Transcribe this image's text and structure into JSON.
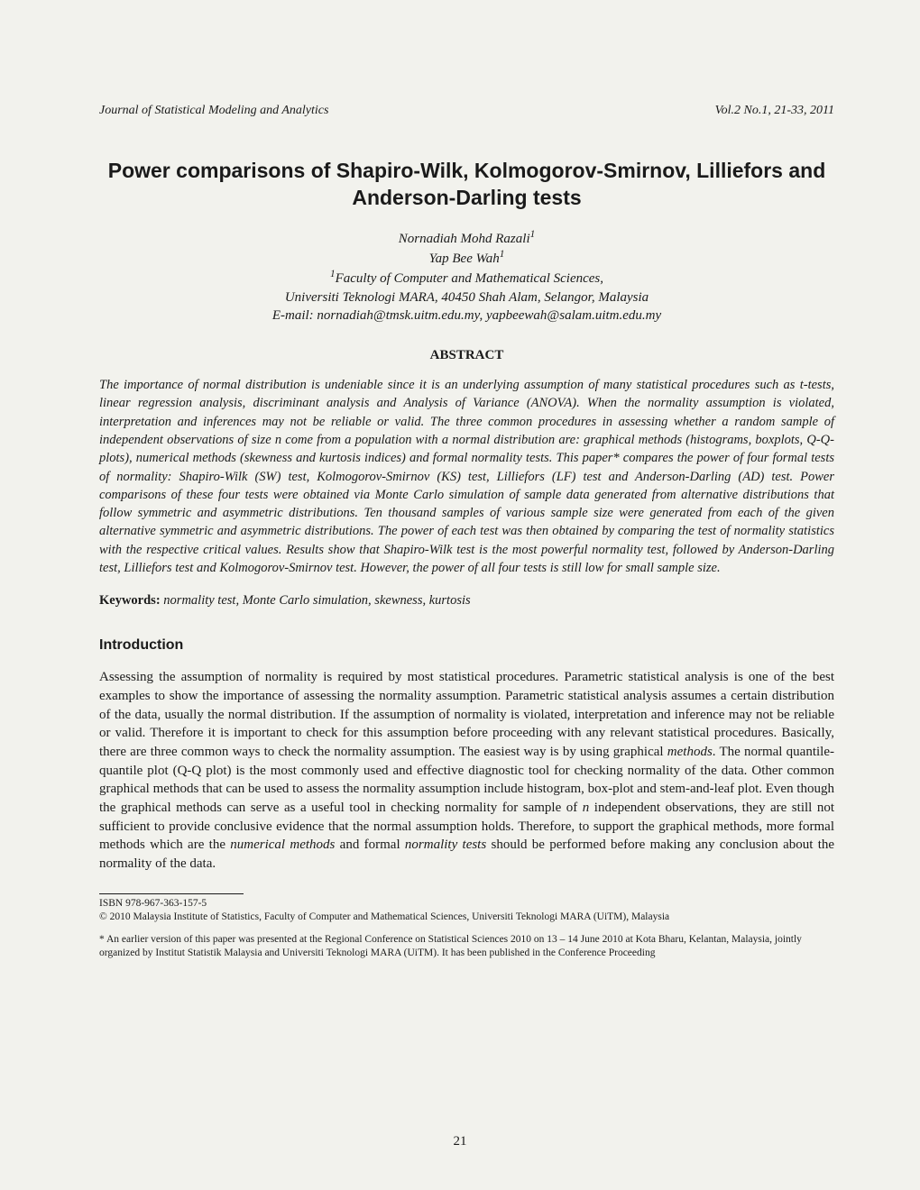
{
  "header": {
    "journal": "Journal of Statistical Modeling and Analytics",
    "volume": "Vol.2 No.1, 21-33, 2011"
  },
  "title": "Power comparisons of Shapiro-Wilk, Kolmogorov-Smirnov, Lilliefors and Anderson-Darling tests",
  "authors": {
    "line1": "Nornadiah Mohd Razali",
    "sup1": "1",
    "line2": "Yap Bee Wah",
    "sup2": "1",
    "affiliation_sup": "1",
    "affiliation": "Faculty of Computer and Mathematical Sciences,",
    "university": "Universiti Teknologi MARA, 40450 Shah Alam, Selangor, Malaysia",
    "email": "E-mail: nornadiah@tmsk.uitm.edu.my, yapbeewah@salam.uitm.edu.my"
  },
  "abstract": {
    "heading": "ABSTRACT",
    "text": "The importance of normal distribution is undeniable since it is an underlying assumption of many statistical procedures such as t-tests, linear regression analysis, discriminant analysis and Analysis of Variance (ANOVA). When the normality assumption is violated, interpretation and inferences may not be reliable or valid. The three common procedures in assessing whether a random sample of independent observations of size n come from a population with a normal distribution are: graphical methods (histograms, boxplots, Q-Q-plots), numerical methods (skewness and kurtosis indices) and formal normality tests. This paper* compares the power of four formal tests of normality: Shapiro-Wilk (SW) test, Kolmogorov-Smirnov (KS) test, Lilliefors (LF) test and Anderson-Darling (AD) test. Power comparisons of these four tests were obtained via Monte Carlo simulation of sample data generated from alternative distributions that follow symmetric and asymmetric distributions. Ten thousand samples of various sample size were generated from each of the given alternative symmetric and asymmetric distributions. The power of each test was then obtained by comparing the test of normality statistics with the respective critical values. Results show that Shapiro-Wilk test is the most powerful normality test, followed by Anderson-Darling test, Lilliefors test and Kolmogorov-Smirnov test. However, the power of all four tests is still low for small sample size."
  },
  "keywords": {
    "label": "Keywords:",
    "text": " normality test, Monte Carlo simulation, skewness, kurtosis"
  },
  "introduction": {
    "heading": "Introduction",
    "p1_a": "Assessing the assumption of normality is required by most statistical procedures. Parametric statistical analysis is one of the best examples to show the importance of assessing the normality assumption. Parametric statistical analysis assumes a certain distribution of the data, usually the normal distribution. If the assumption of normality is violated, interpretation and inference may not be reliable or valid. Therefore it is important to check for this assumption before proceeding with any relevant statistical procedures. Basically, there are three common ways to check the normality assumption. The easiest way is by using graphical ",
    "p1_em1": "methods",
    "p1_b": ". The normal quantile-quantile plot (Q-Q plot) is the most commonly used and effective diagnostic tool for checking normality of the data. Other common graphical methods that can be used to assess the normality assumption include histogram, box-plot and stem-and-leaf plot. Even though the graphical methods can serve as a useful tool in checking normality for sample of ",
    "p1_em_n": "n",
    "p1_c": " independent observations, they are still not sufficient to provide conclusive evidence that the normal assumption holds. Therefore, to support the graphical methods, more formal methods which are the ",
    "p1_em2": "numerical methods",
    "p1_d": " and formal ",
    "p1_em3": "normality tests",
    "p1_e": " should be performed before making any conclusion about the normality of the data."
  },
  "footnotes": {
    "isbn": "ISBN 978-967-363-157-5",
    "copyright": "© 2010 Malaysia Institute of Statistics, Faculty of Computer and Mathematical Sciences, Universiti Teknologi MARA (UiTM), Malaysia",
    "note": "* An earlier version of this paper was presented at the Regional Conference on Statistical Sciences 2010 on 13 – 14 June 2010 at Kota Bharu, Kelantan, Malaysia, jointly organized by Institut Statistik Malaysia and Universiti Teknologi MARA (UiTM). It has been published in the Conference Proceeding"
  },
  "page_number": "21"
}
